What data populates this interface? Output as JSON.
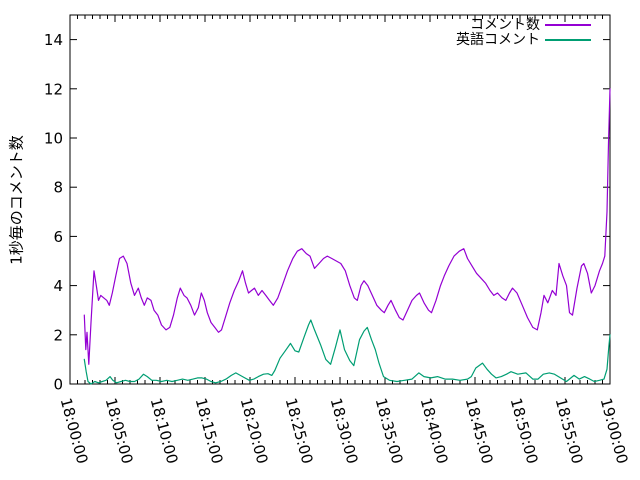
{
  "figure": {
    "background_color": "#ffffff",
    "axis_color": "#000000",
    "ylabel": "1秒毎のコメント数",
    "legend": [
      {
        "label": "コメント数",
        "color": "#9400d3"
      },
      {
        "label": "英語コメント",
        "color": "#009e73"
      }
    ]
  },
  "chart_data": {
    "type": "line",
    "title": "",
    "xlabel": "",
    "ylabel": "1秒毎のコメント数",
    "x_axis": "time, 18:00:00 to 19:00:00",
    "x_unit_seconds_since": "18:00:00",
    "xlim": [
      0,
      3600
    ],
    "ylim": [
      0,
      15
    ],
    "grid": false,
    "legend_position": "top-right-inside",
    "x_tick_labels": [
      "18:00:00",
      "18:05:00",
      "18:10:00",
      "18:15:00",
      "18:20:00",
      "18:25:00",
      "18:30:00",
      "18:35:00",
      "18:40:00",
      "18:45:00",
      "18:50:00",
      "18:55:00",
      "19:00:00"
    ],
    "x_major_tick_interval_s": 300,
    "x_minor_tick_interval_s": 50,
    "y_tick_labels": [
      "0",
      "2",
      "4",
      "6",
      "8",
      "10",
      "12",
      "14"
    ],
    "y_major_tick_interval": 2,
    "series": [
      {
        "id": "comment-count",
        "name": "コメント数",
        "color": "#9400d3",
        "points": [
          [
            95,
            2.8
          ],
          [
            105,
            1.4
          ],
          [
            113,
            2.1
          ],
          [
            125,
            0.8
          ],
          [
            140,
            2.5
          ],
          [
            160,
            4.6
          ],
          [
            175,
            4.0
          ],
          [
            190,
            3.4
          ],
          [
            205,
            3.6
          ],
          [
            225,
            3.5
          ],
          [
            245,
            3.4
          ],
          [
            262,
            3.2
          ],
          [
            282,
            3.7
          ],
          [
            305,
            4.4
          ],
          [
            330,
            5.1
          ],
          [
            355,
            5.2
          ],
          [
            380,
            4.9
          ],
          [
            405,
            4.1
          ],
          [
            430,
            3.6
          ],
          [
            455,
            3.9
          ],
          [
            475,
            3.5
          ],
          [
            495,
            3.2
          ],
          [
            515,
            3.5
          ],
          [
            540,
            3.4
          ],
          [
            560,
            3.0
          ],
          [
            585,
            2.8
          ],
          [
            610,
            2.4
          ],
          [
            640,
            2.2
          ],
          [
            665,
            2.3
          ],
          [
            690,
            2.8
          ],
          [
            715,
            3.5
          ],
          [
            735,
            3.9
          ],
          [
            760,
            3.6
          ],
          [
            780,
            3.5
          ],
          [
            805,
            3.2
          ],
          [
            830,
            2.8
          ],
          [
            855,
            3.1
          ],
          [
            875,
            3.7
          ],
          [
            895,
            3.4
          ],
          [
            915,
            2.9
          ],
          [
            940,
            2.5
          ],
          [
            965,
            2.3
          ],
          [
            990,
            2.1
          ],
          [
            1010,
            2.2
          ],
          [
            1035,
            2.7
          ],
          [
            1065,
            3.3
          ],
          [
            1095,
            3.8
          ],
          [
            1125,
            4.2
          ],
          [
            1150,
            4.6
          ],
          [
            1170,
            4.1
          ],
          [
            1190,
            3.7
          ],
          [
            1210,
            3.8
          ],
          [
            1230,
            3.9
          ],
          [
            1255,
            3.6
          ],
          [
            1280,
            3.8
          ],
          [
            1305,
            3.6
          ],
          [
            1330,
            3.4
          ],
          [
            1355,
            3.2
          ],
          [
            1385,
            3.5
          ],
          [
            1415,
            4.0
          ],
          [
            1450,
            4.6
          ],
          [
            1485,
            5.1
          ],
          [
            1515,
            5.4
          ],
          [
            1545,
            5.5
          ],
          [
            1575,
            5.3
          ],
          [
            1600,
            5.2
          ],
          [
            1630,
            4.7
          ],
          [
            1660,
            4.9
          ],
          [
            1690,
            5.1
          ],
          [
            1715,
            5.2
          ],
          [
            1745,
            5.1
          ],
          [
            1775,
            5.0
          ],
          [
            1805,
            4.9
          ],
          [
            1835,
            4.6
          ],
          [
            1865,
            4.0
          ],
          [
            1895,
            3.5
          ],
          [
            1915,
            3.4
          ],
          [
            1940,
            4.0
          ],
          [
            1960,
            4.2
          ],
          [
            1985,
            4.0
          ],
          [
            2015,
            3.6
          ],
          [
            2045,
            3.2
          ],
          [
            2075,
            3.0
          ],
          [
            2095,
            2.9
          ],
          [
            2120,
            3.2
          ],
          [
            2140,
            3.4
          ],
          [
            2170,
            3.0
          ],
          [
            2195,
            2.7
          ],
          [
            2220,
            2.6
          ],
          [
            2250,
            3.0
          ],
          [
            2280,
            3.4
          ],
          [
            2310,
            3.6
          ],
          [
            2330,
            3.7
          ],
          [
            2360,
            3.3
          ],
          [
            2390,
            3.0
          ],
          [
            2410,
            2.9
          ],
          [
            2440,
            3.4
          ],
          [
            2470,
            4.0
          ],
          [
            2495,
            4.4
          ],
          [
            2525,
            4.8
          ],
          [
            2560,
            5.2
          ],
          [
            2595,
            5.4
          ],
          [
            2625,
            5.5
          ],
          [
            2650,
            5.1
          ],
          [
            2680,
            4.8
          ],
          [
            2710,
            4.5
          ],
          [
            2740,
            4.3
          ],
          [
            2770,
            4.1
          ],
          [
            2800,
            3.8
          ],
          [
            2825,
            3.6
          ],
          [
            2850,
            3.7
          ],
          [
            2880,
            3.5
          ],
          [
            2905,
            3.4
          ],
          [
            2930,
            3.7
          ],
          [
            2950,
            3.9
          ],
          [
            2980,
            3.7
          ],
          [
            3015,
            3.2
          ],
          [
            3050,
            2.7
          ],
          [
            3085,
            2.3
          ],
          [
            3115,
            2.2
          ],
          [
            3140,
            2.9
          ],
          [
            3160,
            3.6
          ],
          [
            3185,
            3.3
          ],
          [
            3215,
            3.8
          ],
          [
            3240,
            3.6
          ],
          [
            3260,
            4.9
          ],
          [
            3285,
            4.4
          ],
          [
            3310,
            4.0
          ],
          [
            3330,
            2.9
          ],
          [
            3350,
            2.8
          ],
          [
            3380,
            3.9
          ],
          [
            3410,
            4.8
          ],
          [
            3425,
            4.9
          ],
          [
            3450,
            4.5
          ],
          [
            3475,
            3.7
          ],
          [
            3500,
            4.0
          ],
          [
            3530,
            4.6
          ],
          [
            3550,
            4.9
          ],
          [
            3565,
            5.2
          ],
          [
            3580,
            7.0
          ],
          [
            3590,
            9.8
          ],
          [
            3600,
            12.0
          ]
        ]
      },
      {
        "id": "english-comments",
        "name": "英語コメント",
        "color": "#009e73",
        "points": [
          [
            95,
            1.0
          ],
          [
            108,
            0.5
          ],
          [
            120,
            0.1
          ],
          [
            140,
            0.0
          ],
          [
            165,
            0.1
          ],
          [
            190,
            0.05
          ],
          [
            215,
            0.1
          ],
          [
            240,
            0.15
          ],
          [
            267,
            0.3
          ],
          [
            285,
            0.15
          ],
          [
            310,
            0.05
          ],
          [
            340,
            0.1
          ],
          [
            370,
            0.15
          ],
          [
            400,
            0.1
          ],
          [
            430,
            0.1
          ],
          [
            460,
            0.2
          ],
          [
            490,
            0.4
          ],
          [
            515,
            0.3
          ],
          [
            545,
            0.15
          ],
          [
            575,
            0.15
          ],
          [
            610,
            0.1
          ],
          [
            645,
            0.15
          ],
          [
            680,
            0.1
          ],
          [
            715,
            0.15
          ],
          [
            750,
            0.2
          ],
          [
            785,
            0.15
          ],
          [
            820,
            0.2
          ],
          [
            850,
            0.25
          ],
          [
            880,
            0.25
          ],
          [
            910,
            0.2
          ],
          [
            940,
            0.1
          ],
          [
            970,
            0.05
          ],
          [
            1005,
            0.1
          ],
          [
            1040,
            0.2
          ],
          [
            1075,
            0.35
          ],
          [
            1105,
            0.45
          ],
          [
            1135,
            0.35
          ],
          [
            1165,
            0.25
          ],
          [
            1195,
            0.15
          ],
          [
            1225,
            0.2
          ],
          [
            1255,
            0.3
          ],
          [
            1290,
            0.4
          ],
          [
            1320,
            0.42
          ],
          [
            1345,
            0.35
          ],
          [
            1365,
            0.55
          ],
          [
            1400,
            1.05
          ],
          [
            1435,
            1.35
          ],
          [
            1470,
            1.65
          ],
          [
            1500,
            1.35
          ],
          [
            1525,
            1.3
          ],
          [
            1560,
            1.9
          ],
          [
            1590,
            2.4
          ],
          [
            1605,
            2.6
          ],
          [
            1630,
            2.2
          ],
          [
            1670,
            1.6
          ],
          [
            1705,
            1.0
          ],
          [
            1737,
            0.8
          ],
          [
            1770,
            1.5
          ],
          [
            1800,
            2.2
          ],
          [
            1830,
            1.4
          ],
          [
            1865,
            0.95
          ],
          [
            1892,
            0.75
          ],
          [
            1930,
            1.8
          ],
          [
            1960,
            2.15
          ],
          [
            1982,
            2.3
          ],
          [
            2010,
            1.8
          ],
          [
            2035,
            1.4
          ],
          [
            2060,
            0.85
          ],
          [
            2090,
            0.3
          ],
          [
            2130,
            0.15
          ],
          [
            2180,
            0.1
          ],
          [
            2230,
            0.15
          ],
          [
            2280,
            0.2
          ],
          [
            2325,
            0.45
          ],
          [
            2360,
            0.3
          ],
          [
            2405,
            0.25
          ],
          [
            2450,
            0.3
          ],
          [
            2500,
            0.2
          ],
          [
            2550,
            0.2
          ],
          [
            2600,
            0.15
          ],
          [
            2650,
            0.2
          ],
          [
            2675,
            0.3
          ],
          [
            2705,
            0.65
          ],
          [
            2750,
            0.85
          ],
          [
            2780,
            0.6
          ],
          [
            2810,
            0.4
          ],
          [
            2840,
            0.25
          ],
          [
            2875,
            0.3
          ],
          [
            2910,
            0.4
          ],
          [
            2940,
            0.5
          ],
          [
            2985,
            0.4
          ],
          [
            3040,
            0.45
          ],
          [
            3085,
            0.2
          ],
          [
            3120,
            0.2
          ],
          [
            3155,
            0.4
          ],
          [
            3195,
            0.45
          ],
          [
            3230,
            0.4
          ],
          [
            3270,
            0.25
          ],
          [
            3310,
            0.1
          ],
          [
            3360,
            0.35
          ],
          [
            3395,
            0.2
          ],
          [
            3430,
            0.3
          ],
          [
            3465,
            0.2
          ],
          [
            3495,
            0.1
          ],
          [
            3530,
            0.15
          ],
          [
            3560,
            0.2
          ],
          [
            3580,
            0.6
          ],
          [
            3592,
            1.5
          ],
          [
            3600,
            2.0
          ]
        ]
      }
    ]
  }
}
